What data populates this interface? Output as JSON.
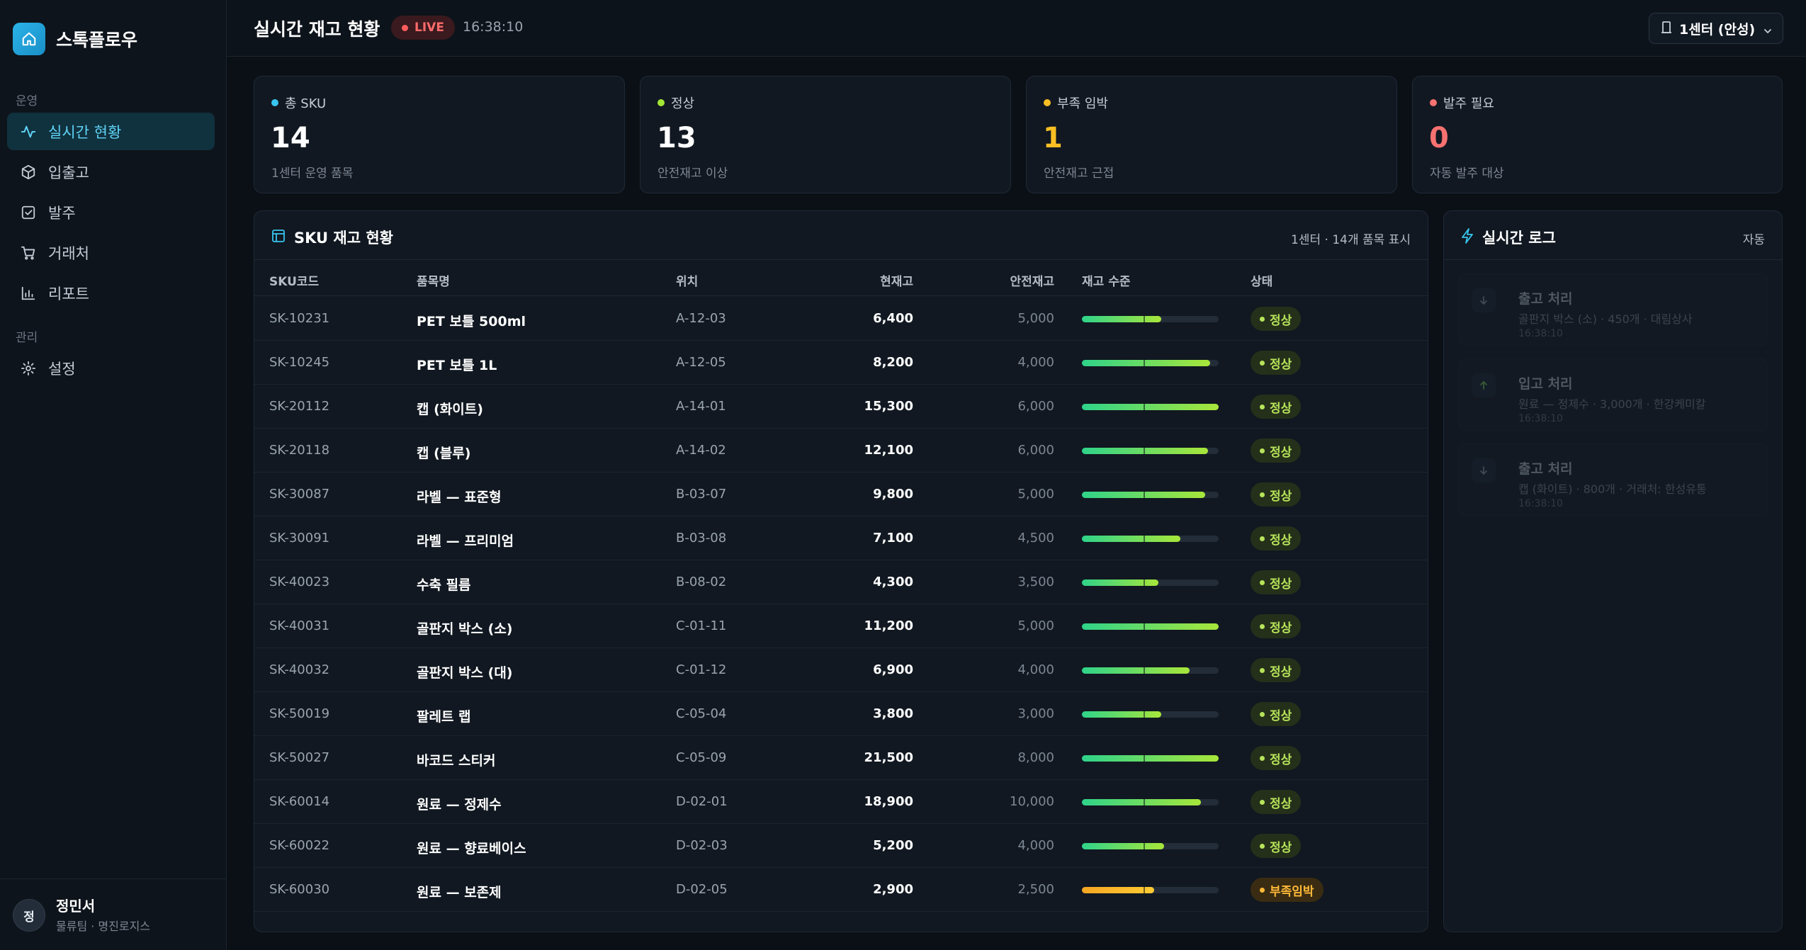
{
  "brand": {
    "name": "스톡플로우"
  },
  "sidebar": {
    "groups": [
      {
        "label": "운영"
      },
      {
        "label": "관리"
      }
    ],
    "items": [
      {
        "label": "실시간 현황",
        "icon": "activity-icon"
      },
      {
        "label": "입출고",
        "icon": "box-icon"
      },
      {
        "label": "발주",
        "icon": "checklist-icon"
      },
      {
        "label": "거래처",
        "icon": "cart-icon"
      },
      {
        "label": "리포트",
        "icon": "bar-chart-icon"
      },
      {
        "label": "설정",
        "icon": "gear-icon"
      }
    ]
  },
  "user": {
    "initial": "정",
    "name": "정민서",
    "org": "물류팀 · 명진로지스"
  },
  "header": {
    "title": "실시간 재고 현황",
    "live": "LIVE",
    "time": "16:38:10",
    "center": "1센터 (안성)"
  },
  "colors": {
    "accent": "#5fd3f5",
    "ok": "#b6e35a",
    "warn": "#ffb938",
    "danger": "#ff6b6b"
  },
  "stats": [
    {
      "label": "총 SKU",
      "value": "14",
      "sub": "1센터 운영 품목",
      "color": "#38c5ef"
    },
    {
      "label": "정상",
      "value": "13",
      "sub": "안전재고 이상",
      "color": "#a3e635"
    },
    {
      "label": "부족 임박",
      "value": "1",
      "sub": "안전재고 근접",
      "color": "#fbbf24"
    },
    {
      "label": "발주 필요",
      "value": "0",
      "sub": "자동 발주 대상",
      "color": "#f87171"
    }
  ],
  "table": {
    "title": "SKU 재고 현황",
    "meta": "1센터 · 14개 품목 표시",
    "columns": [
      "SKU코드",
      "품목명",
      "위치",
      "현재고",
      "안전재고",
      "재고 수준",
      "상태"
    ],
    "rows": [
      {
        "sku": "SK-10231",
        "name": "PET 보틀 500ml",
        "loc": "A-12-03",
        "cur": "6,400",
        "safe": "5,000",
        "level": 0.58,
        "status": "정상",
        "state": "ok"
      },
      {
        "sku": "SK-10245",
        "name": "PET 보틀 1L",
        "loc": "A-12-05",
        "cur": "8,200",
        "safe": "4,000",
        "level": 0.94,
        "status": "정상",
        "state": "ok"
      },
      {
        "sku": "SK-20112",
        "name": "캡 (화이트)",
        "loc": "A-14-01",
        "cur": "15,300",
        "safe": "6,000",
        "level": 1.0,
        "status": "정상",
        "state": "ok"
      },
      {
        "sku": "SK-20118",
        "name": "캡 (블루)",
        "loc": "A-14-02",
        "cur": "12,100",
        "safe": "6,000",
        "level": 0.92,
        "status": "정상",
        "state": "ok"
      },
      {
        "sku": "SK-30087",
        "name": "라벨 — 표준형",
        "loc": "B-03-07",
        "cur": "9,800",
        "safe": "5,000",
        "level": 0.9,
        "status": "정상",
        "state": "ok"
      },
      {
        "sku": "SK-30091",
        "name": "라벨 — 프리미엄",
        "loc": "B-03-08",
        "cur": "7,100",
        "safe": "4,500",
        "level": 0.72,
        "status": "정상",
        "state": "ok"
      },
      {
        "sku": "SK-40023",
        "name": "수축 필름",
        "loc": "B-08-02",
        "cur": "4,300",
        "safe": "3,500",
        "level": 0.56,
        "status": "정상",
        "state": "ok"
      },
      {
        "sku": "SK-40031",
        "name": "골판지 박스 (소)",
        "loc": "C-01-11",
        "cur": "11,200",
        "safe": "5,000",
        "level": 1.0,
        "status": "정상",
        "state": "ok"
      },
      {
        "sku": "SK-40032",
        "name": "골판지 박스 (대)",
        "loc": "C-01-12",
        "cur": "6,900",
        "safe": "4,000",
        "level": 0.79,
        "status": "정상",
        "state": "ok"
      },
      {
        "sku": "SK-50019",
        "name": "팔레트 랩",
        "loc": "C-05-04",
        "cur": "3,800",
        "safe": "3,000",
        "level": 0.58,
        "status": "정상",
        "state": "ok"
      },
      {
        "sku": "SK-50027",
        "name": "바코드 스티커",
        "loc": "C-05-09",
        "cur": "21,500",
        "safe": "8,000",
        "level": 1.0,
        "status": "정상",
        "state": "ok"
      },
      {
        "sku": "SK-60014",
        "name": "원료 — 정제수",
        "loc": "D-02-01",
        "cur": "18,900",
        "safe": "10,000",
        "level": 0.87,
        "status": "정상",
        "state": "ok"
      },
      {
        "sku": "SK-60022",
        "name": "원료 — 향료베이스",
        "loc": "D-02-03",
        "cur": "5,200",
        "safe": "4,000",
        "level": 0.6,
        "status": "정상",
        "state": "ok"
      },
      {
        "sku": "SK-60030",
        "name": "원료 — 보존제",
        "loc": "D-02-05",
        "cur": "2,900",
        "safe": "2,500",
        "level": 0.53,
        "status": "부족임박",
        "state": "warn"
      }
    ]
  },
  "log": {
    "title": "실시간 로그",
    "mode": "자동",
    "items": [
      {
        "type": "out",
        "title": "출고 처리",
        "desc": "골판지 박스 (소) · 450개 · 대림상사",
        "time": "16:38:10"
      },
      {
        "type": "in",
        "title": "입고 처리",
        "desc": "원료 — 정제수 · 3,000개 · 한강케미칼",
        "time": "16:38:10"
      },
      {
        "type": "out",
        "title": "출고 처리",
        "desc": "캡 (화이트) · 800개 · 거래처: 한성유통",
        "time": "16:38:10"
      }
    ]
  }
}
